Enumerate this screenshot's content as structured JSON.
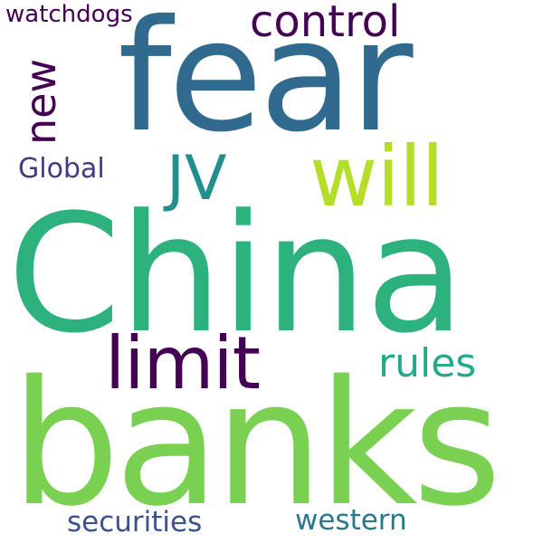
{
  "words": {
    "china": {
      "text": "China",
      "color": "#2db27d"
    },
    "banks": {
      "text": "banks",
      "color": "#7ad151"
    },
    "fear": {
      "text": "fear",
      "color": "#306a8e"
    },
    "will": {
      "text": "will",
      "color": "#b5de2b"
    },
    "limit": {
      "text": "limit",
      "color": "#440154"
    },
    "control": {
      "text": "control",
      "color": "#440154"
    },
    "jv": {
      "text": "JV",
      "color": "#218f8d"
    },
    "rules": {
      "text": "rules",
      "color": "#26a98b"
    },
    "new": {
      "text": "new",
      "color": "#440154"
    },
    "global": {
      "text": "Global",
      "color": "#443983"
    },
    "watchdogs": {
      "text": "watchdogs",
      "color": "#440154"
    },
    "securities": {
      "text": "securities",
      "color": "#3b528b"
    },
    "western": {
      "text": "western",
      "color": "#2a788e"
    }
  }
}
